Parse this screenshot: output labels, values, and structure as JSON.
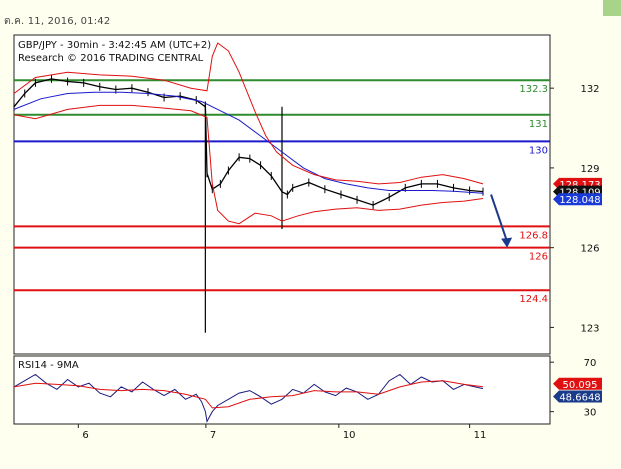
{
  "header": {
    "date_label": "ต.ค. 11, 2016, 01:42"
  },
  "chart_data": [
    {
      "type": "line",
      "title": "GBP/JPY - 30min - 3:42:45 AM (UTC+2)",
      "subtitle": "Research © 2016 TRADING CENTRAL",
      "ylim": [
        122.0,
        134.0
      ],
      "y_ticks": [
        {
          "value": 132,
          "label": "132"
        },
        {
          "value": 129,
          "label": "129"
        },
        {
          "value": 126,
          "label": "126"
        },
        {
          "value": 123,
          "label": "123"
        }
      ],
      "x_ticks": [
        {
          "position": 0.12,
          "label": "6"
        },
        {
          "position": 0.358,
          "label": "7"
        },
        {
          "position": 0.606,
          "label": "10"
        },
        {
          "position": 0.85,
          "label": "11"
        }
      ],
      "levels": [
        {
          "value": 132.3,
          "label": "132.3",
          "color": "#2e8b2e"
        },
        {
          "value": 131.0,
          "label": "131",
          "color": "#2e8b2e"
        },
        {
          "value": 130.0,
          "label": "130",
          "color": "#1a1acc"
        },
        {
          "value": 126.8,
          "label": "126.8",
          "color": "#e01010"
        },
        {
          "value": 126.0,
          "label": "126",
          "color": "#e01010"
        },
        {
          "value": 124.4,
          "label": "124.4",
          "color": "#e01010"
        }
      ],
      "price_badges": [
        {
          "value": 128.173,
          "label": "128.173",
          "color": "#e01010"
        },
        {
          "value": 128.109,
          "label": "128.109",
          "color": "#111111"
        },
        {
          "value": 128.048,
          "label": "128.048",
          "color": "#1a3ad8"
        }
      ],
      "series": [
        {
          "name": "",
          "kind": "ohlc",
          "color": "#000000",
          "points": [
            [
              0.0,
              131.3
            ],
            [
              0.02,
              131.8
            ],
            [
              0.04,
              132.2
            ],
            [
              0.07,
              132.35
            ],
            [
              0.1,
              132.25
            ],
            [
              0.13,
              132.2
            ],
            [
              0.16,
              132.05
            ],
            [
              0.19,
              131.95
            ],
            [
              0.22,
              132.0
            ],
            [
              0.25,
              131.85
            ],
            [
              0.28,
              131.65
            ],
            [
              0.31,
              131.7
            ],
            [
              0.34,
              131.55
            ],
            [
              0.357,
              131.3
            ],
            [
              0.36,
              128.8
            ],
            [
              0.37,
              128.2
            ],
            [
              0.385,
              128.4
            ],
            [
              0.4,
              128.9
            ],
            [
              0.42,
              129.4
            ],
            [
              0.44,
              129.35
            ],
            [
              0.46,
              129.1
            ],
            [
              0.48,
              128.7
            ],
            [
              0.5,
              128.1
            ],
            [
              0.51,
              128.0
            ],
            [
              0.52,
              128.25
            ],
            [
              0.55,
              128.45
            ],
            [
              0.58,
              128.2
            ],
            [
              0.61,
              128.0
            ],
            [
              0.64,
              127.8
            ],
            [
              0.67,
              127.6
            ],
            [
              0.7,
              127.9
            ],
            [
              0.73,
              128.25
            ],
            [
              0.76,
              128.4
            ],
            [
              0.79,
              128.4
            ],
            [
              0.82,
              128.25
            ],
            [
              0.85,
              128.15
            ],
            [
              0.875,
              128.11
            ]
          ],
          "high": [
            [
              0.357,
              131.5
            ],
            [
              0.36,
              131.3
            ],
            [
              0.5,
              128.4
            ]
          ],
          "low": [
            [
              0.357,
              122.8
            ],
            [
              0.5,
              126.7
            ]
          ]
        },
        {
          "name": "",
          "kind": "line",
          "color": "#1a1acc",
          "points": [
            [
              0.0,
              131.2
            ],
            [
              0.05,
              131.6
            ],
            [
              0.1,
              131.8
            ],
            [
              0.15,
              131.85
            ],
            [
              0.2,
              131.85
            ],
            [
              0.25,
              131.8
            ],
            [
              0.3,
              131.7
            ],
            [
              0.35,
              131.5
            ],
            [
              0.38,
              131.2
            ],
            [
              0.42,
              130.8
            ],
            [
              0.46,
              130.2
            ],
            [
              0.5,
              129.6
            ],
            [
              0.54,
              129.0
            ],
            [
              0.58,
              128.6
            ],
            [
              0.62,
              128.4
            ],
            [
              0.66,
              128.25
            ],
            [
              0.7,
              128.15
            ],
            [
              0.74,
              128.15
            ],
            [
              0.78,
              128.15
            ],
            [
              0.82,
              128.12
            ],
            [
              0.875,
              128.05
            ]
          ]
        },
        {
          "name": "",
          "kind": "line",
          "color": "#e01010",
          "points": [
            [
              0.0,
              131.8
            ],
            [
              0.04,
              132.4
            ],
            [
              0.1,
              132.6
            ],
            [
              0.16,
              132.5
            ],
            [
              0.22,
              132.45
            ],
            [
              0.28,
              132.3
            ],
            [
              0.33,
              132.0
            ],
            [
              0.36,
              131.9
            ],
            [
              0.37,
              133.2
            ],
            [
              0.38,
              133.7
            ],
            [
              0.4,
              133.4
            ],
            [
              0.42,
              132.6
            ],
            [
              0.45,
              131.1
            ],
            [
              0.47,
              130.2
            ],
            [
              0.49,
              129.6
            ],
            [
              0.52,
              129.1
            ],
            [
              0.56,
              128.75
            ],
            [
              0.6,
              128.55
            ],
            [
              0.64,
              128.5
            ],
            [
              0.68,
              128.4
            ],
            [
              0.72,
              128.45
            ],
            [
              0.76,
              128.65
            ],
            [
              0.8,
              128.75
            ],
            [
              0.84,
              128.6
            ],
            [
              0.875,
              128.4
            ]
          ]
        },
        {
          "name": "",
          "kind": "line",
          "color": "#e01010",
          "points": [
            [
              0.0,
              131.0
            ],
            [
              0.04,
              130.85
            ],
            [
              0.1,
              131.2
            ],
            [
              0.16,
              131.35
            ],
            [
              0.22,
              131.35
            ],
            [
              0.28,
              131.25
            ],
            [
              0.33,
              131.15
            ],
            [
              0.36,
              130.9
            ],
            [
              0.37,
              128.4
            ],
            [
              0.38,
              127.4
            ],
            [
              0.4,
              127.0
            ],
            [
              0.42,
              126.9
            ],
            [
              0.45,
              127.3
            ],
            [
              0.48,
              127.2
            ],
            [
              0.5,
              127.0
            ],
            [
              0.53,
              127.2
            ],
            [
              0.56,
              127.35
            ],
            [
              0.6,
              127.45
            ],
            [
              0.64,
              127.5
            ],
            [
              0.68,
              127.4
            ],
            [
              0.72,
              127.45
            ],
            [
              0.76,
              127.6
            ],
            [
              0.8,
              127.7
            ],
            [
              0.84,
              127.75
            ],
            [
              0.875,
              127.85
            ]
          ]
        }
      ],
      "arrow": {
        "from": [
          0.89,
          128.0
        ],
        "to": [
          0.92,
          126.0
        ],
        "color": "#1a3a8a"
      }
    },
    {
      "type": "line",
      "title": "RSI14 - 9MA",
      "ylim": [
        20.0,
        75.0
      ],
      "y_ticks": [
        {
          "value": 70,
          "label": "70"
        },
        {
          "value": 30,
          "label": "30"
        }
      ],
      "price_badges": [
        {
          "value": 50.095,
          "label": "50.095",
          "color": "#e01010"
        },
        {
          "value": 48.6648,
          "label": "48.6648",
          "color": "#1a3a8a"
        }
      ],
      "series": [
        {
          "name": "",
          "kind": "line",
          "color": "#1a1a80",
          "points": [
            [
              0.0,
              50
            ],
            [
              0.02,
              55
            ],
            [
              0.04,
              60
            ],
            [
              0.06,
              53
            ],
            [
              0.08,
              48
            ],
            [
              0.1,
              56
            ],
            [
              0.12,
              50
            ],
            [
              0.14,
              53
            ],
            [
              0.16,
              45
            ],
            [
              0.18,
              42
            ],
            [
              0.2,
              50
            ],
            [
              0.22,
              46
            ],
            [
              0.24,
              54
            ],
            [
              0.26,
              48
            ],
            [
              0.28,
              43
            ],
            [
              0.3,
              48
            ],
            [
              0.32,
              40
            ],
            [
              0.34,
              44
            ],
            [
              0.35,
              38
            ],
            [
              0.357,
              30
            ],
            [
              0.36,
              22
            ],
            [
              0.37,
              30
            ],
            [
              0.38,
              35
            ],
            [
              0.4,
              40
            ],
            [
              0.42,
              45
            ],
            [
              0.44,
              47
            ],
            [
              0.46,
              42
            ],
            [
              0.48,
              36
            ],
            [
              0.5,
              40
            ],
            [
              0.52,
              48
            ],
            [
              0.54,
              45
            ],
            [
              0.56,
              52
            ],
            [
              0.58,
              46
            ],
            [
              0.6,
              43
            ],
            [
              0.62,
              49
            ],
            [
              0.64,
              46
            ],
            [
              0.66,
              40
            ],
            [
              0.68,
              44
            ],
            [
              0.7,
              55
            ],
            [
              0.72,
              60
            ],
            [
              0.74,
              52
            ],
            [
              0.76,
              58
            ],
            [
              0.78,
              54
            ],
            [
              0.8,
              55
            ],
            [
              0.82,
              48
            ],
            [
              0.84,
              52
            ],
            [
              0.86,
              50
            ],
            [
              0.875,
              48.66
            ]
          ]
        },
        {
          "name": "",
          "kind": "line",
          "color": "#e01010",
          "points": [
            [
              0.0,
              50
            ],
            [
              0.04,
              53
            ],
            [
              0.08,
              52
            ],
            [
              0.12,
              51
            ],
            [
              0.16,
              48
            ],
            [
              0.2,
              47
            ],
            [
              0.24,
              48
            ],
            [
              0.28,
              47
            ],
            [
              0.32,
              44
            ],
            [
              0.357,
              40
            ],
            [
              0.37,
              33
            ],
            [
              0.4,
              34
            ],
            [
              0.44,
              40
            ],
            [
              0.48,
              42
            ],
            [
              0.52,
              43
            ],
            [
              0.56,
              47
            ],
            [
              0.6,
              46
            ],
            [
              0.64,
              46
            ],
            [
              0.68,
              44
            ],
            [
              0.72,
              50
            ],
            [
              0.76,
              54
            ],
            [
              0.8,
              55
            ],
            [
              0.84,
              52
            ],
            [
              0.875,
              50.1
            ]
          ]
        }
      ]
    }
  ]
}
